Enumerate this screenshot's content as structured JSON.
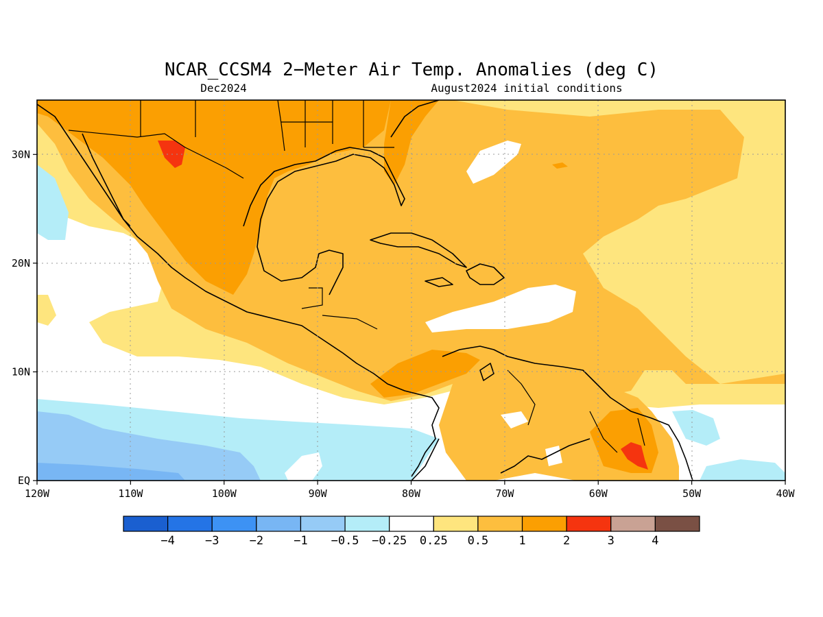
{
  "title": "NCAR_CCSM4 2−Meter Air Temp. Anomalies (deg C)",
  "subtitle_left": "Dec2024",
  "subtitle_right": "August2024 initial conditions",
  "map": {
    "lon_range": [
      -120,
      -40
    ],
    "lat_range": [
      0,
      35
    ],
    "lon_ticks": [
      {
        "value": -120,
        "label": "120W"
      },
      {
        "value": -110,
        "label": "110W"
      },
      {
        "value": -100,
        "label": "100W"
      },
      {
        "value": -90,
        "label": "90W"
      },
      {
        "value": -80,
        "label": "80W"
      },
      {
        "value": -70,
        "label": "70W"
      },
      {
        "value": -60,
        "label": "60W"
      },
      {
        "value": -50,
        "label": "50W"
      },
      {
        "value": -40,
        "label": "40W"
      }
    ],
    "lat_ticks": [
      {
        "value": 0,
        "label": "EQ"
      },
      {
        "value": 10,
        "label": "10N"
      },
      {
        "value": 20,
        "label": "20N"
      },
      {
        "value": 30,
        "label": "30N"
      }
    ]
  },
  "colorbar": {
    "colors": [
      "#1a5fd0",
      "#2474e6",
      "#3d92f4",
      "#78b6f4",
      "#96cbf6",
      "#b4edf8",
      "#ffffff",
      "#fee57e",
      "#fdbe3e",
      "#fb9f02",
      "#f5340f",
      "#c9a294",
      "#7a5044"
    ],
    "labels": [
      "−4",
      "−3",
      "−2",
      "−1",
      "−0.5",
      "−0.25",
      "0.25",
      "0.5",
      "1",
      "2",
      "3",
      "4"
    ]
  }
}
